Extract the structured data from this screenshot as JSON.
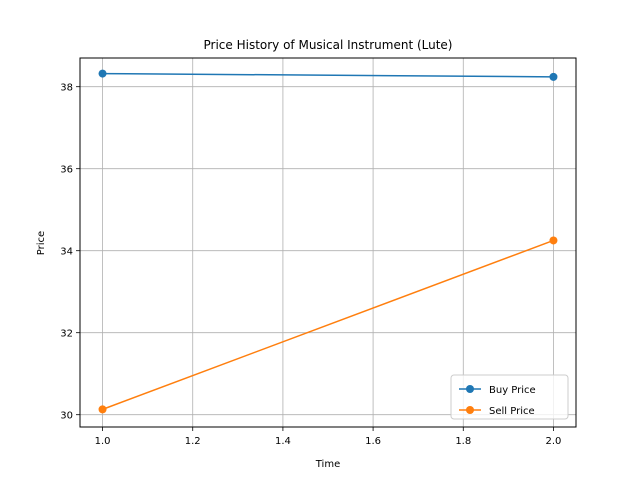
{
  "chart_data": {
    "type": "line",
    "title": "Price History of Musical Instrument (Lute)",
    "xlabel": "Time",
    "ylabel": "Price",
    "xlim": [
      0.95,
      2.05
    ],
    "ylim": [
      29.7,
      38.7
    ],
    "xticks": [
      1.0,
      1.2,
      1.4,
      1.6,
      1.8,
      2.0
    ],
    "xtick_labels": [
      "1.0",
      "1.2",
      "1.4",
      "1.6",
      "1.8",
      "2.0"
    ],
    "yticks": [
      30,
      32,
      34,
      36,
      38
    ],
    "ytick_labels": [
      "30",
      "32",
      "34",
      "36",
      "38"
    ],
    "grid": true,
    "legend_position": "bottom-right",
    "series": [
      {
        "name": "Buy Price",
        "color": "#1f77b4",
        "x": [
          1.0,
          2.0
        ],
        "values": [
          38.32,
          38.24
        ]
      },
      {
        "name": "Sell Price",
        "color": "#ff7f0e",
        "x": [
          1.0,
          2.0
        ],
        "values": [
          30.13,
          34.25
        ]
      }
    ]
  }
}
